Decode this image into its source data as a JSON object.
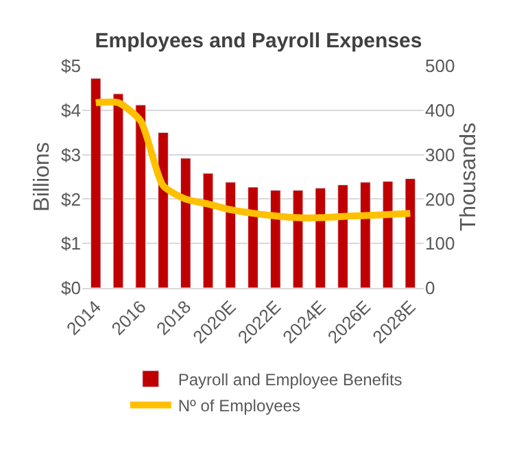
{
  "chart_data": {
    "type": "bar",
    "title": "Employees and Payroll Expenses",
    "categories": [
      "2014",
      null,
      "2016",
      null,
      "2018",
      null,
      "2020E",
      null,
      "2022E",
      null,
      "2024E",
      null,
      "2026E",
      null,
      "2028E"
    ],
    "series": [
      {
        "name": "Payroll and Employee Benefits",
        "color": "#c00000",
        "values": [
          4.72,
          4.37,
          4.12,
          3.5,
          2.92,
          2.58,
          2.38,
          2.27,
          2.2,
          2.2,
          2.25,
          2.32,
          2.38,
          2.4,
          2.46
        ]
      },
      {
        "name": "Nº of Employees",
        "type": "line",
        "axis": "y2",
        "color": "#ffc000",
        "values": [
          417,
          417,
          376,
          230,
          200,
          189,
          176,
          168,
          162,
          158,
          158,
          161,
          163,
          165,
          168
        ]
      }
    ],
    "ylabel": "Billions",
    "y2label": "Thousands",
    "ylim": [
      0,
      5
    ],
    "yticks": [
      {
        "value": 0,
        "label": "$0"
      },
      {
        "value": 1,
        "label": "$1"
      },
      {
        "value": 2,
        "label": "$2"
      },
      {
        "value": 3,
        "label": "$3"
      },
      {
        "value": 4,
        "label": "$4"
      },
      {
        "value": 5,
        "label": "$5"
      }
    ],
    "y2lim": [
      0,
      500
    ],
    "y2ticks": [
      0,
      100,
      200,
      300,
      400,
      500
    ],
    "grid": "y",
    "legend": "bottom"
  }
}
